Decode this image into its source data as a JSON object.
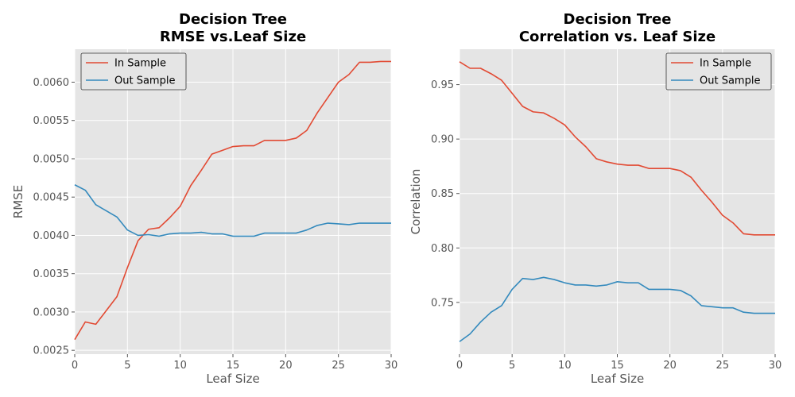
{
  "chart_data": [
    {
      "type": "line",
      "title": "Decision Tree",
      "subtitle": "RMSE vs.Leaf Size",
      "xlabel": "Leaf Size",
      "ylabel": "RMSE",
      "xlim": [
        0,
        30
      ],
      "ylim": [
        0.00245,
        0.00643
      ],
      "xticks": [
        0,
        5,
        10,
        15,
        20,
        25,
        30
      ],
      "yticks": [
        0.0025,
        0.003,
        0.0035,
        0.004,
        0.0045,
        0.005,
        0.0055,
        0.006
      ],
      "ytick_labels": [
        "0.0025",
        "0.0030",
        "0.0035",
        "0.0040",
        "0.0045",
        "0.0050",
        "0.0055",
        "0.0060"
      ],
      "grid": true,
      "legend_position": "top-left",
      "x": [
        0,
        1,
        2,
        3,
        4,
        5,
        6,
        7,
        8,
        9,
        10,
        11,
        12,
        13,
        14,
        15,
        16,
        17,
        18,
        19,
        20,
        21,
        22,
        23,
        24,
        25,
        26,
        27,
        28,
        29,
        30
      ],
      "series": [
        {
          "name": "In Sample",
          "color": "#E24A33",
          "values": [
            0.00264,
            0.00287,
            0.00284,
            0.00302,
            0.0032,
            0.00358,
            0.00393,
            0.00408,
            0.0041,
            0.00423,
            0.00438,
            0.00465,
            0.00485,
            0.00506,
            0.00511,
            0.00516,
            0.00517,
            0.00517,
            0.00524,
            0.00524,
            0.00524,
            0.00527,
            0.00537,
            0.0056,
            0.0058,
            0.006,
            0.0061,
            0.00626,
            0.00626,
            0.00627,
            0.00627
          ]
        },
        {
          "name": "Out Sample",
          "color": "#348ABD",
          "values": [
            0.00466,
            0.00459,
            0.0044,
            0.00432,
            0.00424,
            0.00407,
            0.004,
            0.00401,
            0.00399,
            0.00402,
            0.00403,
            0.00403,
            0.00404,
            0.00402,
            0.00402,
            0.00399,
            0.00399,
            0.00399,
            0.00403,
            0.00403,
            0.00403,
            0.00403,
            0.00407,
            0.00413,
            0.00416,
            0.00415,
            0.00414,
            0.00416,
            0.00416,
            0.00416,
            0.00416
          ]
        }
      ]
    },
    {
      "type": "line",
      "title": "Decision Tree",
      "subtitle": "Correlation vs. Leaf Size",
      "xlabel": "Leaf Size",
      "ylabel": "Correlation",
      "xlim": [
        0,
        30
      ],
      "ylim": [
        0.7025,
        0.9825
      ],
      "xticks": [
        0,
        5,
        10,
        15,
        20,
        25,
        30
      ],
      "yticks": [
        0.75,
        0.8,
        0.85,
        0.9,
        0.95
      ],
      "ytick_labels": [
        "0.75",
        "0.80",
        "0.85",
        "0.90",
        "0.95"
      ],
      "grid": true,
      "legend_position": "top-right",
      "x": [
        0,
        1,
        2,
        3,
        4,
        5,
        6,
        7,
        8,
        9,
        10,
        11,
        12,
        13,
        14,
        15,
        16,
        17,
        18,
        19,
        20,
        21,
        22,
        23,
        24,
        25,
        26,
        27,
        28,
        29,
        30
      ],
      "series": [
        {
          "name": "In Sample",
          "color": "#E24A33",
          "values": [
            0.971,
            0.965,
            0.965,
            0.96,
            0.954,
            0.942,
            0.93,
            0.925,
            0.924,
            0.919,
            0.913,
            0.902,
            0.893,
            0.882,
            0.879,
            0.877,
            0.876,
            0.876,
            0.873,
            0.873,
            0.873,
            0.871,
            0.865,
            0.853,
            0.842,
            0.83,
            0.823,
            0.813,
            0.812,
            0.812,
            0.812
          ]
        },
        {
          "name": "Out Sample",
          "color": "#348ABD",
          "values": [
            0.714,
            0.721,
            0.732,
            0.741,
            0.747,
            0.762,
            0.772,
            0.771,
            0.773,
            0.771,
            0.768,
            0.766,
            0.766,
            0.765,
            0.766,
            0.769,
            0.768,
            0.768,
            0.762,
            0.762,
            0.762,
            0.761,
            0.756,
            0.747,
            0.746,
            0.745,
            0.745,
            0.741,
            0.74,
            0.74,
            0.74
          ]
        }
      ]
    }
  ]
}
